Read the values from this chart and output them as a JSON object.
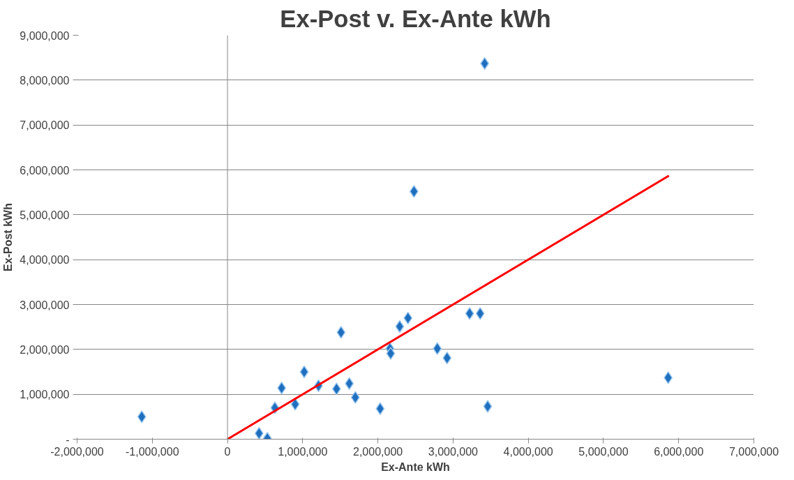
{
  "chart_data": {
    "type": "scatter",
    "title": "Ex-Post v. Ex-Ante kWh",
    "xlabel": "Ex-Ante kWh",
    "ylabel": "Ex-Post kWh",
    "x": [
      -1140000,
      420000,
      530000,
      630000,
      720000,
      900000,
      1020000,
      1210000,
      1450000,
      1510000,
      1620000,
      1700000,
      2030000,
      2160000,
      2170000,
      2290000,
      2400000,
      2480000,
      2790000,
      2920000,
      3220000,
      3360000,
      3420000,
      3460000,
      5860000
    ],
    "series": [
      {
        "color": "#1f6fbf",
        "values": [
          500000,
          130000,
          20000,
          700000,
          1140000,
          780000,
          1500000,
          1190000,
          1120000,
          2380000,
          1240000,
          930000,
          680000,
          2020000,
          1910000,
          2510000,
          2700000,
          5520000,
          2020000,
          1810000,
          2800000,
          2800000,
          8370000,
          730000,
          1370000
        ]
      },
      {
        "type": "line",
        "color": "#ff0000",
        "x": [
          0,
          5870000
        ],
        "values": [
          0,
          5870000
        ],
        "marker": "none"
      }
    ],
    "xlim": [
      -2000000,
      7000000
    ],
    "ylim": [
      0,
      9000000
    ],
    "xticks": [
      {
        "value": -2000000,
        "label": "-2,000,000"
      },
      {
        "value": -1000000,
        "label": "-1,000,000"
      },
      0,
      {
        "value": 1000000,
        "label": "1,000,000"
      },
      {
        "value": 2000000,
        "label": "2,000,000"
      },
      {
        "value": 3000000,
        "label": "3,000,000"
      },
      {
        "value": 4000000,
        "label": "4,000,000"
      },
      {
        "value": 5000000,
        "label": "5,000,000"
      },
      {
        "value": 6000000,
        "label": "6,000,000"
      },
      {
        "value": 7000000,
        "label": "7,000,000"
      }
    ],
    "yticks": [
      {
        "value": 0,
        "label": "-"
      },
      {
        "value": 1000000,
        "label": "1,000,000"
      },
      {
        "value": 2000000,
        "label": "2,000,000"
      },
      {
        "value": 3000000,
        "label": "3,000,000"
      },
      {
        "value": 4000000,
        "label": "4,000,000"
      },
      {
        "value": 5000000,
        "label": "5,000,000"
      },
      {
        "value": 6000000,
        "label": "6,000,000"
      },
      {
        "value": 7000000,
        "label": "7,000,000"
      },
      {
        "value": 8000000,
        "label": "8,000,000"
      },
      {
        "value": 9000000,
        "label": "9,000,000"
      }
    ],
    "ref_lines": [
      {
        "axis": "x",
        "value": 0,
        "color": "#868686"
      }
    ],
    "grid": "y",
    "marker": "diamond"
  }
}
